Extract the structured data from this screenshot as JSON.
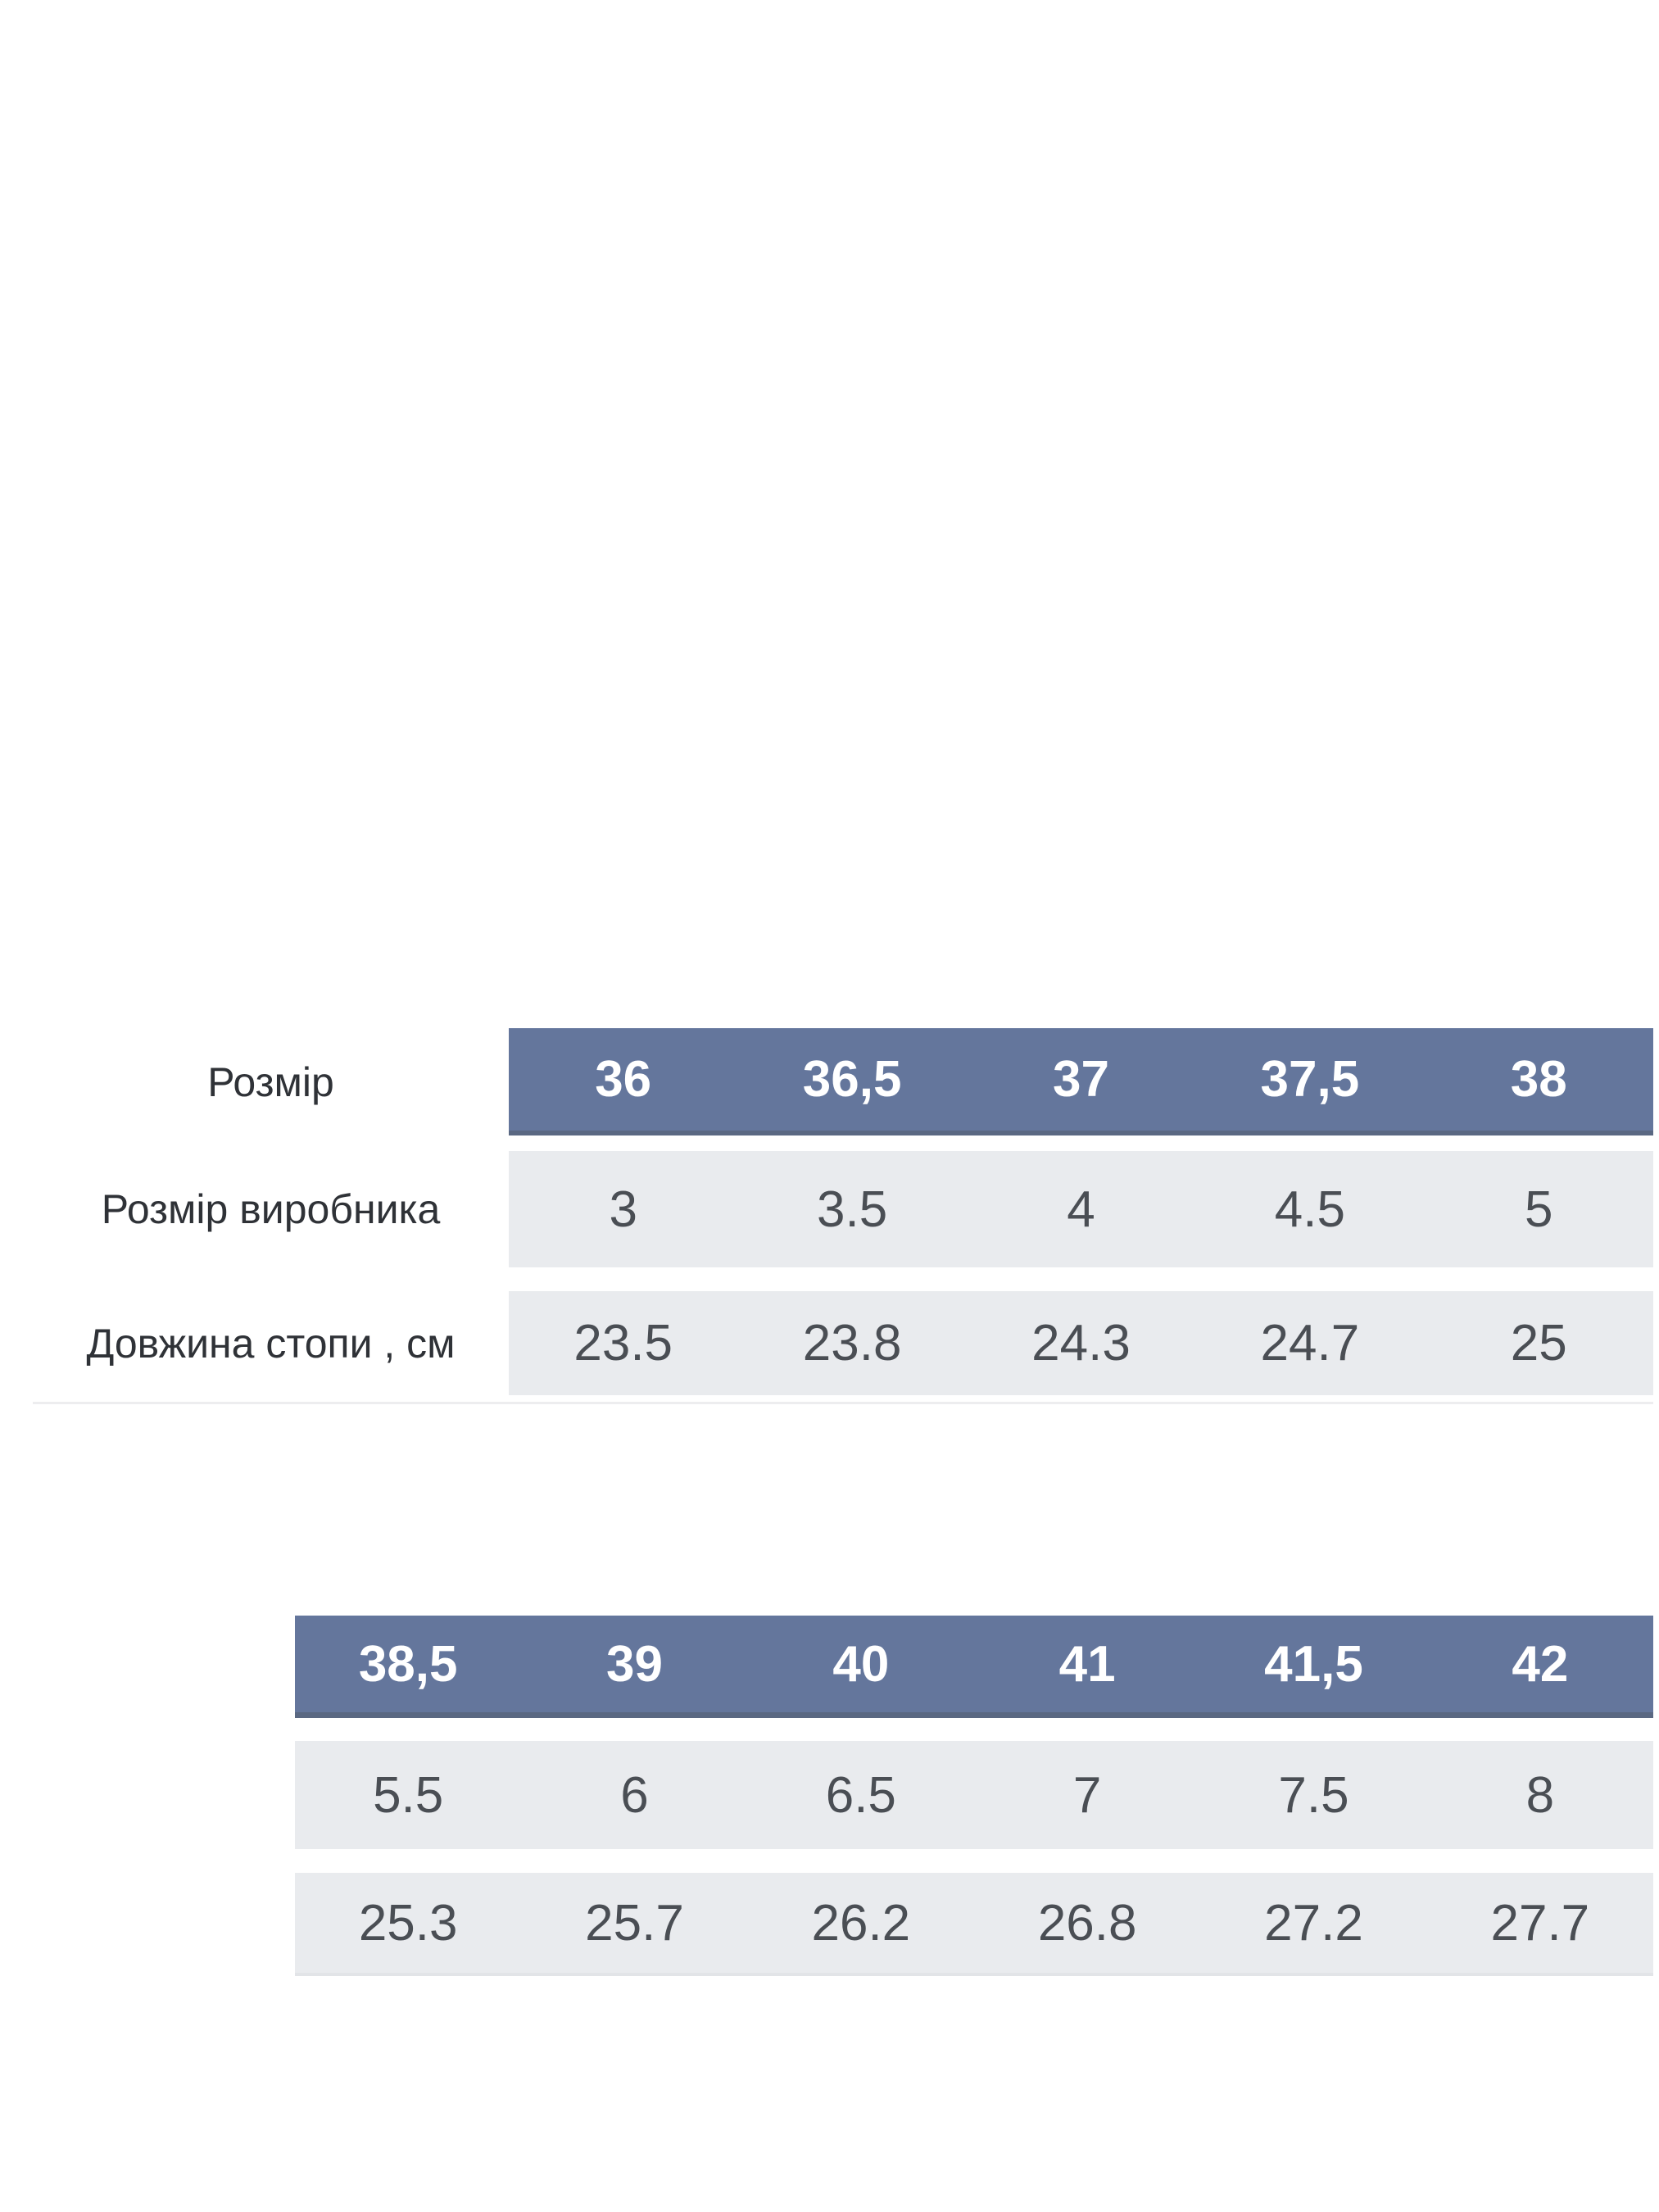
{
  "colors": {
    "page_background": "#ffffff",
    "header_background": "#64769c",
    "header_bottom_border": "#5a6882",
    "header_text": "#ffffff",
    "value_row_background": "#e9ebee",
    "value_text": "#4a4e54",
    "label_text": "#2f3237",
    "bottom_divider": "#ededef"
  },
  "chart_data": {
    "type": "table",
    "title": "",
    "row_headers": [
      "Розмір",
      "Розмір виробника",
      "Довжина стопи , см"
    ],
    "segments": [
      {
        "columns": [
          "36",
          "36,5",
          "37",
          "37,5",
          "38"
        ],
        "rows": [
          [
            "3",
            "3.5",
            "4",
            "4.5",
            "5"
          ],
          [
            "23.5",
            "23.8",
            "24.3",
            "24.7",
            "25"
          ]
        ]
      },
      {
        "columns": [
          "38,5",
          "39",
          "40",
          "41",
          "41,5",
          "42"
        ],
        "rows": [
          [
            "5.5",
            "6",
            "6.5",
            "7",
            "7.5",
            "8"
          ],
          [
            "25.3",
            "25.7",
            "26.2",
            "26.8",
            "27.2",
            "27.7"
          ]
        ]
      }
    ],
    "layout": {
      "segment_1_columns": 5,
      "segment_2_columns": 6,
      "label_column_only_in_segment_1": true,
      "grid": "off"
    }
  }
}
